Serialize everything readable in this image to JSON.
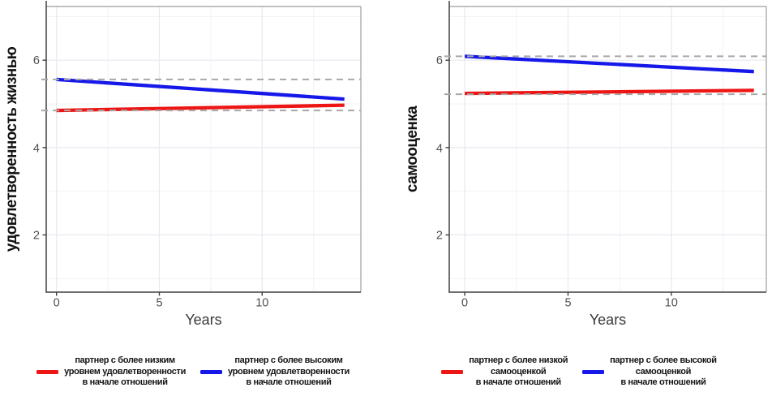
{
  "chart_data": [
    {
      "type": "line",
      "title": "",
      "xlabel": "Years",
      "ylabel": "удовлетворенность жизнью",
      "x_ticks": [
        0,
        5,
        10
      ],
      "y_ticks": [
        2,
        4,
        6
      ],
      "xlim": [
        -0.5,
        14.8
      ],
      "ylim": [
        0.69,
        7.23
      ],
      "grid": true,
      "legend_position": "bottom",
      "x": [
        0,
        14
      ],
      "series": [
        {
          "name": "партнер с более низким уровнем удовлетворенности в начале отношений",
          "color": "#ee1515",
          "values": [
            4.85,
            4.97
          ]
        },
        {
          "name": "партнер с более высоким уровнем удовлетворенности в начале отношений",
          "color": "#1518e8",
          "values": [
            5.56,
            5.11
          ]
        }
      ],
      "ref_lines": [
        {
          "y": 4.85,
          "style": "dashed",
          "color": "#a8a8a8"
        },
        {
          "y": 5.56,
          "style": "dashed",
          "color": "#a8a8a8"
        }
      ],
      "legend": [
        {
          "color": "#ee1515",
          "lines": [
            "партнер с более низким",
            "уровнем удовлетворенности",
            "в начале отношений"
          ]
        },
        {
          "color": "#1518e8",
          "lines": [
            "партнер с более высоким",
            "уровнем удовлетворенности",
            "в начале отношений"
          ]
        }
      ]
    },
    {
      "type": "line",
      "title": "",
      "xlabel": "Years",
      "ylabel": "самооценка",
      "x_ticks": [
        0,
        5,
        10
      ],
      "y_ticks": [
        2,
        4,
        6
      ],
      "xlim": [
        -0.75,
        14.6
      ],
      "ylim": [
        0.69,
        7.23
      ],
      "grid": true,
      "legend_position": "bottom",
      "x": [
        0,
        14
      ],
      "series": [
        {
          "name": "партнер с более низкой самооценкой в начале отношений",
          "color": "#ee1515",
          "values": [
            5.24,
            5.31
          ]
        },
        {
          "name": "партнер с более высокой самооценкой в начале отношений",
          "color": "#1518e8",
          "values": [
            6.09,
            5.74
          ]
        }
      ],
      "ref_lines": [
        {
          "y": 5.22,
          "style": "dashed",
          "color": "#a8a8a8"
        },
        {
          "y": 6.09,
          "style": "dashed",
          "color": "#a8a8a8"
        }
      ],
      "legend": [
        {
          "color": "#ee1515",
          "lines": [
            "партнер с более низкой",
            "самооценкой",
            "в начале отношений"
          ]
        },
        {
          "color": "#1518e8",
          "lines": [
            "партнер с более высокой",
            "самооценкой",
            "в начале отношений"
          ]
        }
      ]
    }
  ]
}
